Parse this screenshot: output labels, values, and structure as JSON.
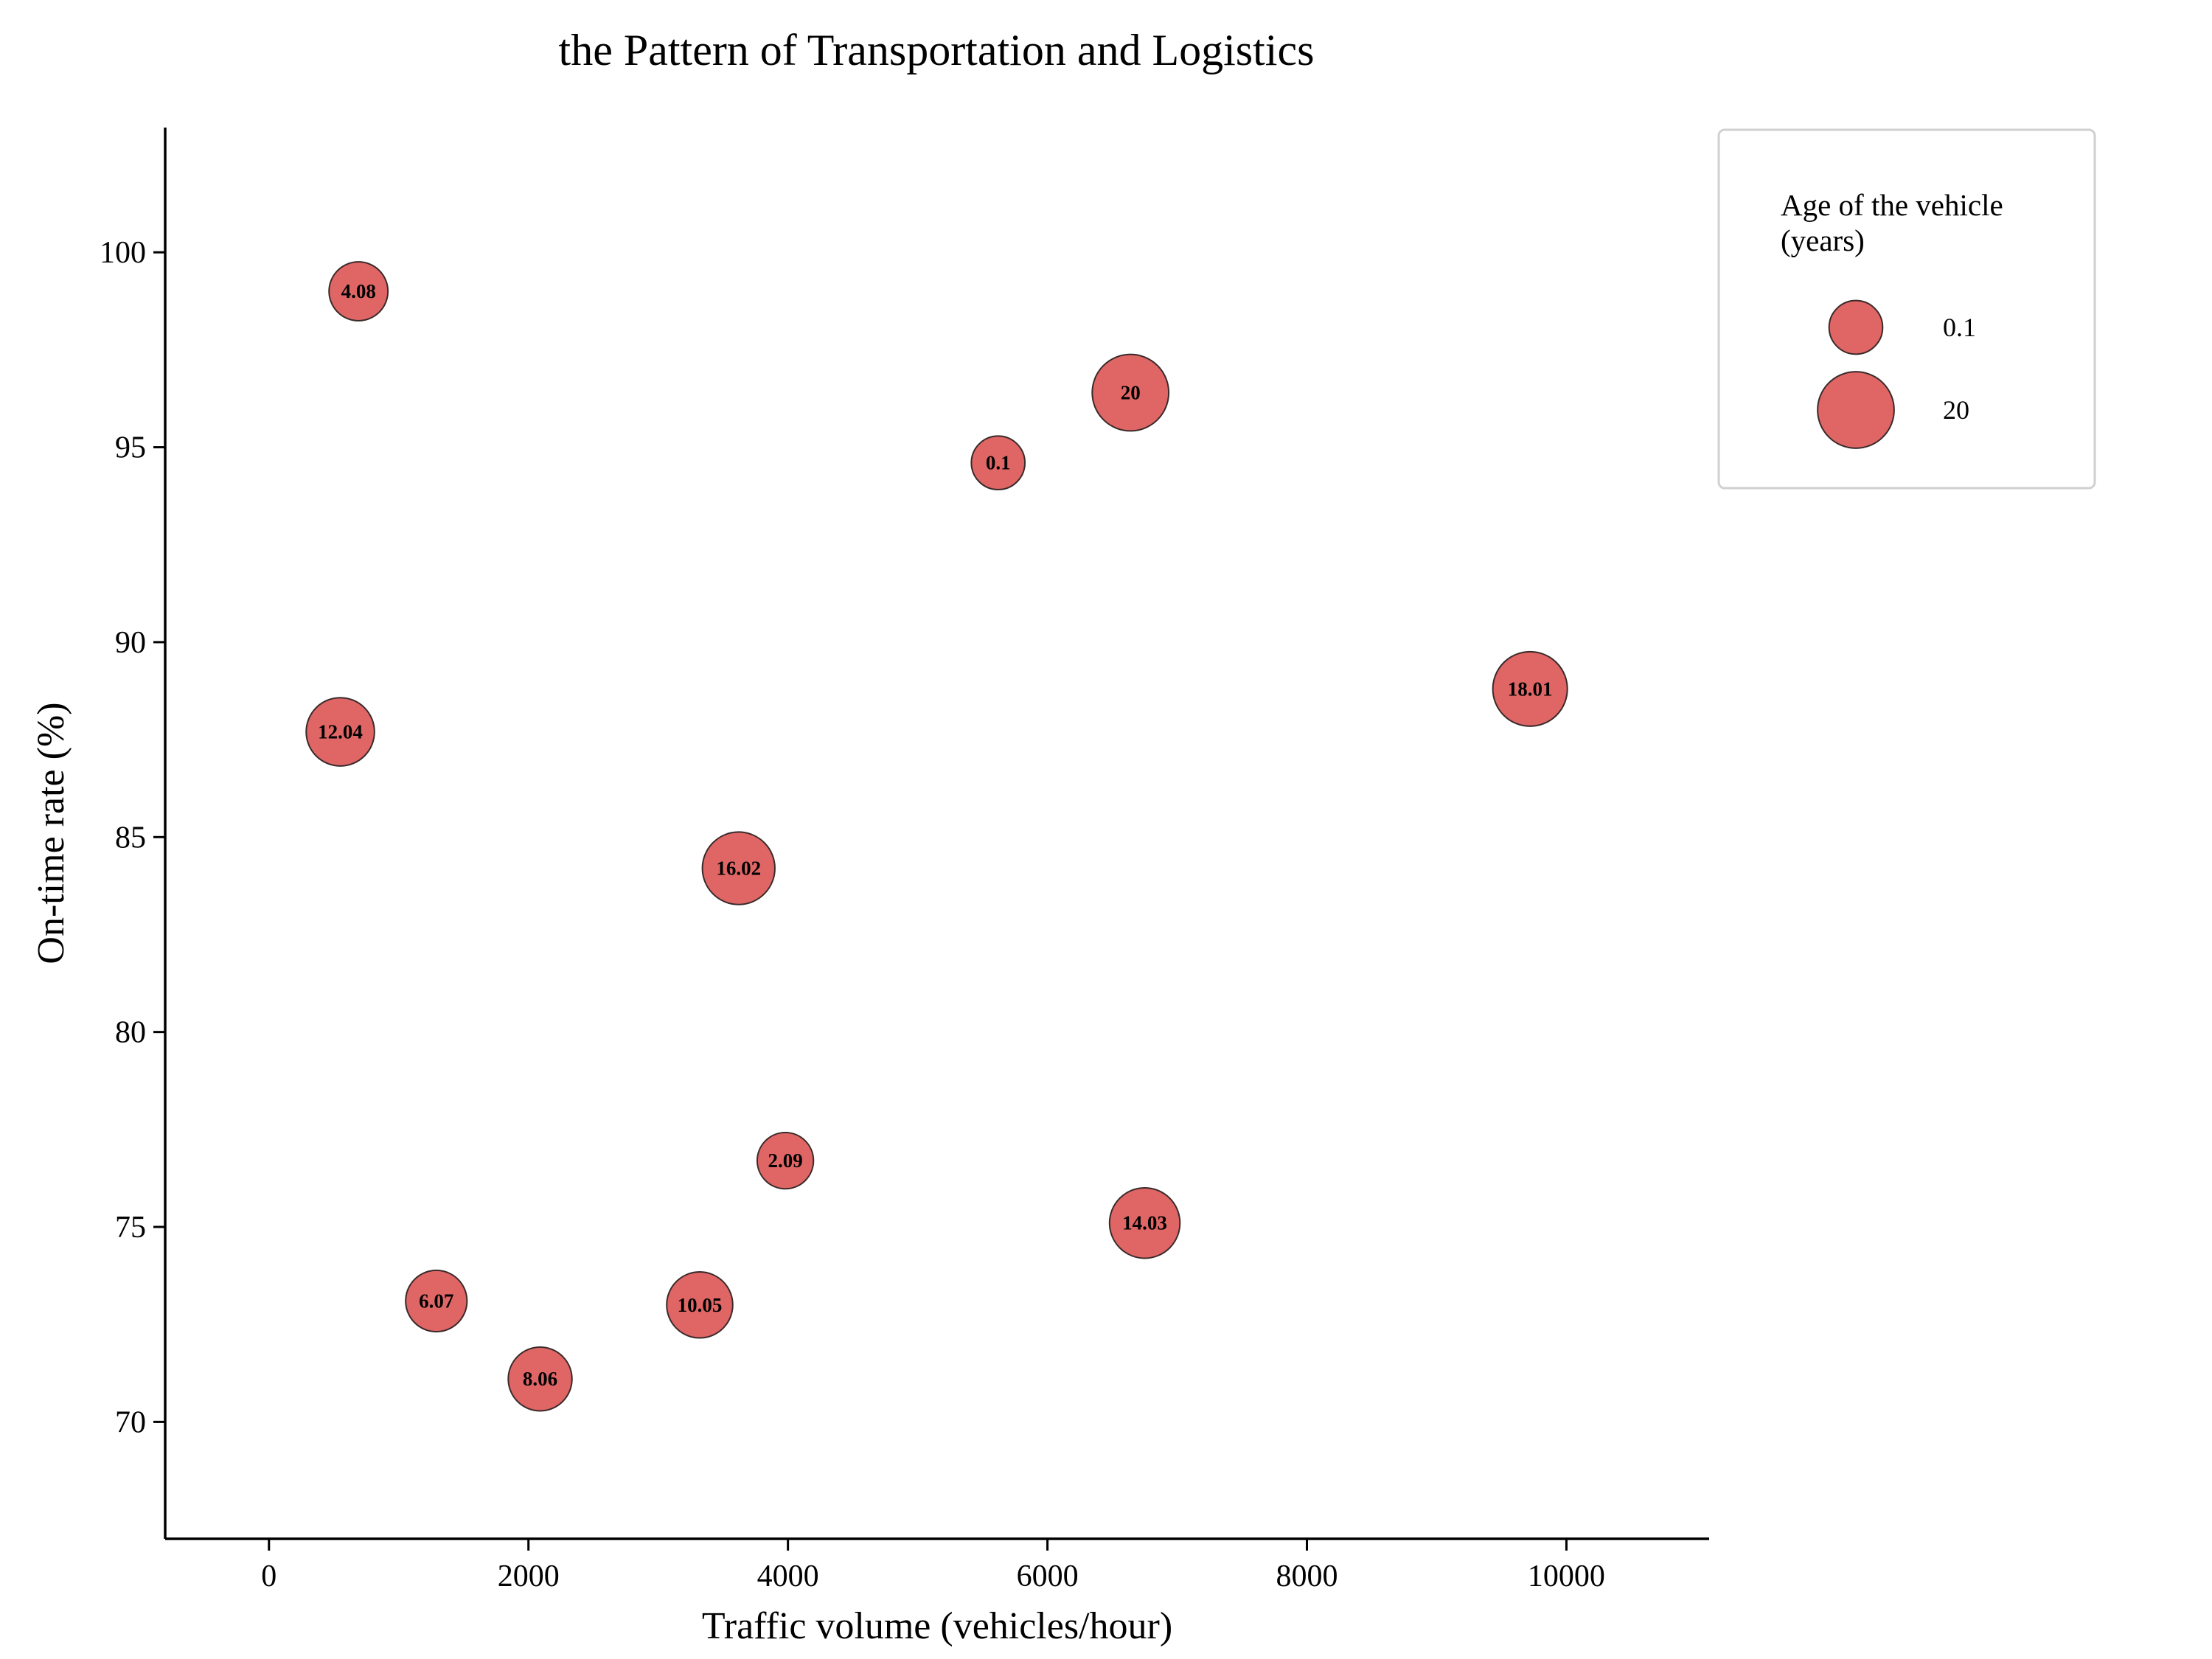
{
  "chart_data": {
    "type": "scatter",
    "title": "the Pattern of Transportation and Logistics",
    "xlabel": "Traffic volume (vehicles/hour)",
    "ylabel": "On-time rate (%)",
    "xlim": [
      -800,
      11100
    ],
    "ylim": [
      67,
      103.2
    ],
    "xticks": [
      0,
      2000,
      4000,
      6000,
      8000,
      10000
    ],
    "xtick_labels": [
      "0",
      "2000",
      "4000",
      "6000",
      "8000",
      "10000"
    ],
    "yticks": [
      70,
      75,
      80,
      85,
      90,
      95,
      100
    ],
    "ytick_labels": [
      "70",
      "75",
      "80",
      "85",
      "90",
      "95",
      "100"
    ],
    "grid": false,
    "size_variable": "Age of the vehicle (years)",
    "points": [
      {
        "x": 690,
        "y": 99.0,
        "size": 4.08,
        "label": "4.08"
      },
      {
        "x": 6640,
        "y": 96.4,
        "size": 20,
        "label": "20"
      },
      {
        "x": 5620,
        "y": 94.6,
        "size": 0.1,
        "label": "0.1"
      },
      {
        "x": 9720,
        "y": 88.8,
        "size": 18.01,
        "label": "18.01"
      },
      {
        "x": 550,
        "y": 87.7,
        "size": 12.04,
        "label": "12.04"
      },
      {
        "x": 3620,
        "y": 84.2,
        "size": 16.02,
        "label": "16.02"
      },
      {
        "x": 3980,
        "y": 76.7,
        "size": 2.09,
        "label": "2.09"
      },
      {
        "x": 6750,
        "y": 75.1,
        "size": 14.03,
        "label": "14.03"
      },
      {
        "x": 1290,
        "y": 73.1,
        "size": 6.07,
        "label": "6.07"
      },
      {
        "x": 3320,
        "y": 73.0,
        "size": 10.05,
        "label": "10.05"
      },
      {
        "x": 2090,
        "y": 71.1,
        "size": 8.06,
        "label": "8.06"
      }
    ],
    "legend": {
      "title_lines": [
        "Age of the vehicle",
        "(years)"
      ],
      "placement": "top-right, outside the plot",
      "entries": [
        {
          "size": 0.1,
          "label": "0.1"
        },
        {
          "size": 20,
          "label": "20"
        }
      ]
    },
    "colors": {
      "bubble_fill": "#e06666",
      "bubble_edge": "#3a2a2a"
    }
  }
}
